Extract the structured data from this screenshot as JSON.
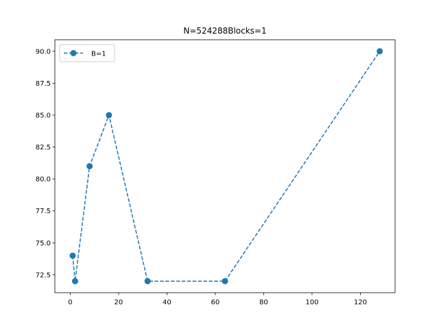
{
  "chart_data": {
    "type": "line",
    "title": "N=524288Blocks=1",
    "xlabel": "",
    "ylabel": "",
    "xlim": [
      -6.35,
      134.35
    ],
    "ylim": [
      71.1,
      90.9
    ],
    "x_ticks": [
      0,
      20,
      40,
      60,
      80,
      100,
      120
    ],
    "y_ticks": [
      72.5,
      75.0,
      77.5,
      80.0,
      82.5,
      85.0,
      87.5,
      90.0
    ],
    "x_tick_labels": [
      "0",
      "20",
      "40",
      "60",
      "80",
      "100",
      "120"
    ],
    "y_tick_labels": [
      "72.5",
      "75.0",
      "77.5",
      "80.0",
      "82.5",
      "85.0",
      "87.5",
      "90.0"
    ],
    "grid": false,
    "legend_position": "upper-left",
    "series": [
      {
        "name": "B=1",
        "color": "#1f77b4",
        "line_style": "dashed",
        "marker": "circle",
        "x": [
          1,
          2,
          8,
          16,
          32,
          64,
          128
        ],
        "y": [
          74,
          72,
          81,
          85,
          72,
          72,
          90
        ]
      }
    ]
  }
}
